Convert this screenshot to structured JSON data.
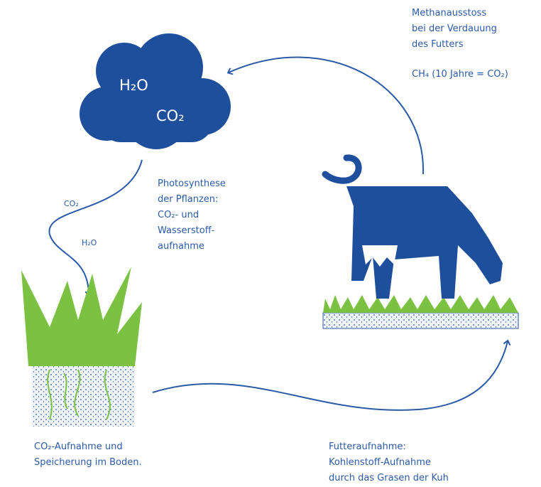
{
  "cloud": {
    "labels": [
      "H₂O",
      "CO₂"
    ]
  },
  "methane": {
    "lines": [
      "Methanausstoss",
      "bei der Verdauung",
      "des Futters"
    ],
    "formula": "CH₄ (10 Jahre = CO₂)"
  },
  "photosynthesis": {
    "lines": [
      "Photosynthese",
      "der Pflanzen:",
      "CO₂- und",
      "Wasserstoff-",
      "aufnahme"
    ]
  },
  "arrow_labels": [
    "CO₂",
    "H₂O"
  ],
  "storage": {
    "lines": [
      "CO₂-Aufnahme und",
      "Speicherung im Boden."
    ]
  },
  "feeding": {
    "lines": [
      "Futteraufnahme:",
      "Kohlenstoff-Aufnahme",
      "durch das Grasen der Kuh"
    ]
  }
}
